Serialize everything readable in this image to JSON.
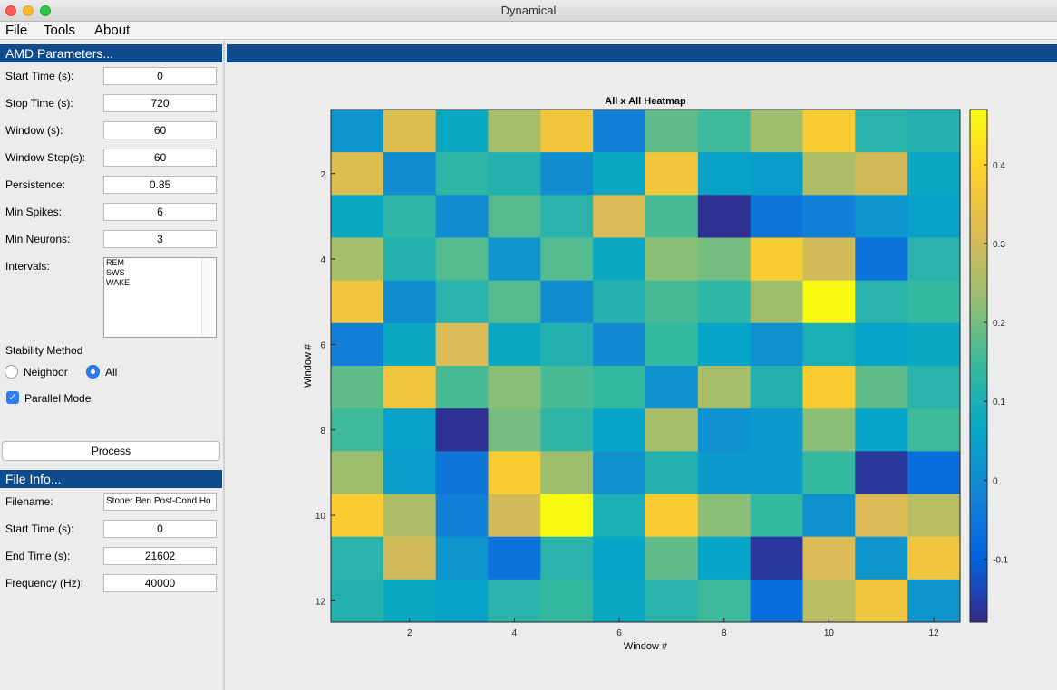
{
  "window": {
    "title": "Dynamical"
  },
  "menu": {
    "file": "File",
    "tools": "Tools",
    "about": "About"
  },
  "amd": {
    "header": "AMD Parameters...",
    "start_time_label": "Start Time (s):",
    "start_time": "0",
    "stop_time_label": "Stop Time (s):",
    "stop_time": "720",
    "window_label": "Window (s):",
    "window": "60",
    "window_step_label": "Window Step(s):",
    "window_step": "60",
    "persistence_label": "Persistence:",
    "persistence": "0.85",
    "min_spikes_label": "Min Spikes:",
    "min_spikes": "6",
    "min_neurons_label": "Min Neurons:",
    "min_neurons": "3",
    "intervals_label": "Intervals:",
    "intervals": [
      "REM",
      "SWS",
      "WAKE"
    ],
    "stability_label": "Stability Method",
    "neighbor_label": "Neighbor",
    "all_label": "All",
    "stability_selected": "All",
    "parallel_label": "Parallel Mode",
    "parallel_checked": true,
    "process_label": "Process"
  },
  "file_info": {
    "header": "File Info...",
    "filename_label": "Filename:",
    "filename": "Stoner Ben Post-Cond Ho",
    "start_time_label": "Start Time (s):",
    "start_time": "0",
    "end_time_label": "End Time (s):",
    "end_time": "21602",
    "frequency_label": "Frequency (Hz):",
    "frequency": "40000"
  },
  "colors": {
    "panel_header": "#0f4a8c",
    "radio_selected": "#2f7df6"
  },
  "chart_data": {
    "type": "heatmap",
    "title": "All x All Heatmap",
    "xlabel": "Window #",
    "ylabel": "Window #",
    "x_ticks": [
      2,
      4,
      6,
      8,
      10,
      12
    ],
    "y_ticks": [
      2,
      4,
      6,
      8,
      10,
      12
    ],
    "colorbar_ticks": [
      -0.1,
      0,
      0.1,
      0.2,
      0.3,
      0.4
    ],
    "colorbar_tick_labels": [
      "-0.1",
      "0",
      "0.1",
      "0.2",
      "0.3",
      "0.4"
    ],
    "clim": [
      -0.18,
      0.47
    ],
    "colormap": "parula",
    "matrix": [
      [
        0.02,
        0.32,
        0.07,
        0.25,
        0.36,
        -0.03,
        0.18,
        0.15,
        0.24,
        0.38,
        0.12,
        0.11
      ],
      [
        0.32,
        0.0,
        0.13,
        0.11,
        0.0,
        0.07,
        0.36,
        0.05,
        0.04,
        0.26,
        0.3,
        0.07
      ],
      [
        0.07,
        0.13,
        0.0,
        0.17,
        0.12,
        0.31,
        0.16,
        -0.17,
        -0.05,
        -0.03,
        0.02,
        0.05
      ],
      [
        0.25,
        0.11,
        0.17,
        0.02,
        0.17,
        0.07,
        0.22,
        0.2,
        0.38,
        0.3,
        -0.06,
        0.12
      ],
      [
        0.36,
        0.0,
        0.12,
        0.17,
        0.0,
        0.11,
        0.16,
        0.13,
        0.24,
        0.47,
        0.12,
        0.14
      ],
      [
        -0.03,
        0.07,
        0.31,
        0.07,
        0.11,
        -0.01,
        0.14,
        0.06,
        0.01,
        0.1,
        0.06,
        0.07
      ],
      [
        0.18,
        0.36,
        0.16,
        0.22,
        0.16,
        0.14,
        0.01,
        0.25,
        0.11,
        0.38,
        0.18,
        0.12
      ],
      [
        0.15,
        0.05,
        -0.17,
        0.2,
        0.13,
        0.06,
        0.25,
        0.01,
        0.03,
        0.22,
        0.06,
        0.15
      ],
      [
        0.24,
        0.04,
        -0.05,
        0.38,
        0.24,
        0.01,
        0.11,
        0.03,
        0.03,
        0.14,
        -0.16,
        -0.07
      ],
      [
        0.38,
        0.26,
        -0.03,
        0.3,
        0.47,
        0.1,
        0.38,
        0.22,
        0.14,
        0.01,
        0.31,
        0.27
      ],
      [
        0.12,
        0.3,
        0.02,
        -0.06,
        0.12,
        0.06,
        0.18,
        0.06,
        -0.16,
        0.31,
        0.02,
        0.36
      ],
      [
        0.11,
        0.07,
        0.05,
        0.12,
        0.14,
        0.07,
        0.12,
        0.15,
        -0.07,
        0.27,
        0.36,
        0.02
      ]
    ]
  }
}
